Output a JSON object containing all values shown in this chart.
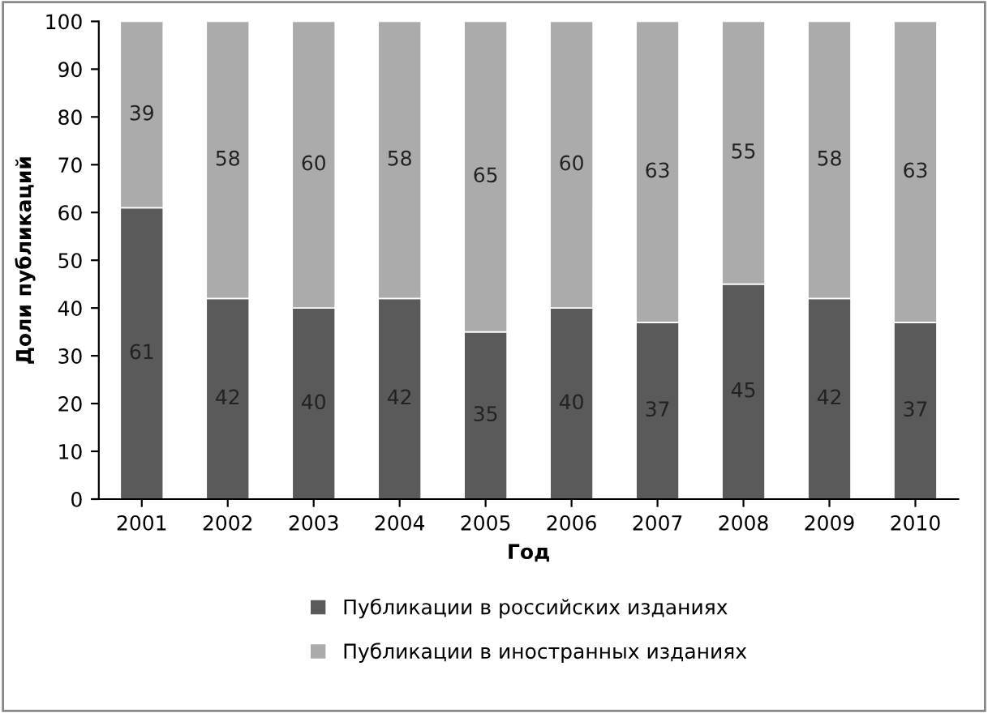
{
  "chart_data": {
    "type": "bar",
    "stacked": true,
    "xlabel": "Год",
    "ylabel": "Доли публикаций",
    "categories": [
      "2001",
      "2002",
      "2003",
      "2004",
      "2005",
      "2006",
      "2007",
      "2008",
      "2009",
      "2010"
    ],
    "series": [
      {
        "name": "Публикации в российских изданиях",
        "color": "#5a5a5a",
        "values": [
          61,
          42,
          40,
          42,
          35,
          40,
          37,
          45,
          42,
          37
        ]
      },
      {
        "name": "Публикации в иностранных изданиях",
        "color": "#ababab",
        "values": [
          39,
          58,
          60,
          58,
          65,
          60,
          63,
          55,
          58,
          63
        ]
      }
    ],
    "ylim": [
      0,
      100
    ],
    "yticks": [
      0,
      10,
      20,
      30,
      40,
      50,
      60,
      70,
      80,
      90,
      100
    ],
    "data_labels": true,
    "legend": "bottom",
    "grid": false
  }
}
